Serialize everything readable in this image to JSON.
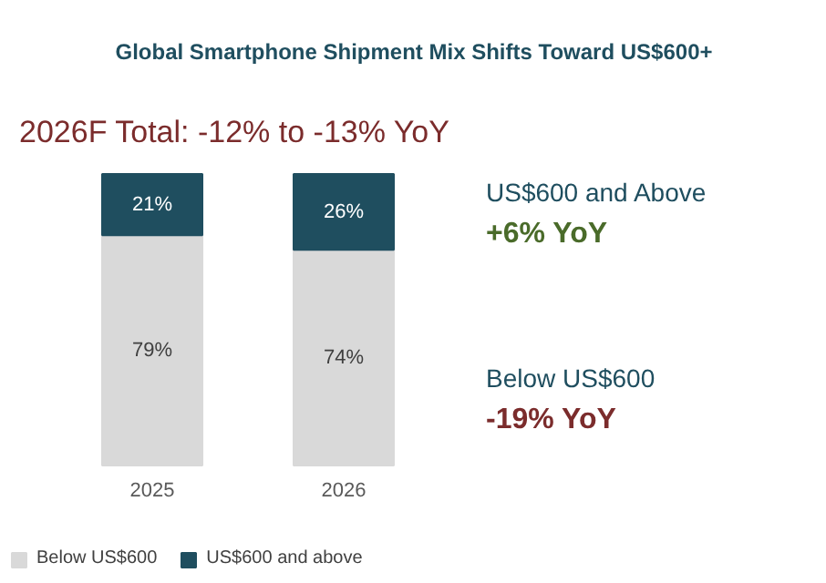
{
  "chart_data": {
    "type": "bar",
    "title": "Global Smartphone Shipment Mix Shifts Toward US$600+",
    "subtitle": "2026F Total: -12% to -13% YoY",
    "categories": [
      "2025",
      "2026"
    ],
    "stacked": true,
    "legend": "bottom",
    "series": [
      {
        "name": "Below US$600",
        "color": "#d9d9d9",
        "values": [
          79,
          74
        ],
        "value_labels": [
          "79%",
          "74%"
        ]
      },
      {
        "name": "US$600 and above",
        "color": "#1f4e5f",
        "values": [
          21,
          26
        ],
        "value_labels": [
          "21%",
          "26%"
        ]
      }
    ],
    "annotations": [
      "US$600 and Above",
      "+6% YoY",
      "Below US$600",
      "-19% YoY"
    ]
  }
}
